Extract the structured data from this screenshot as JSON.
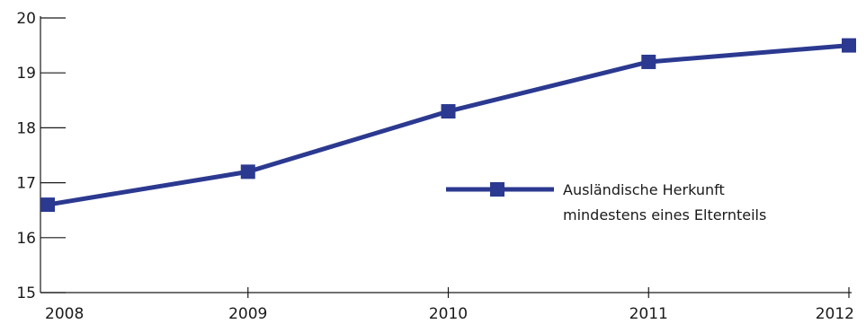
{
  "chart_data": {
    "type": "line",
    "title": "",
    "xlabel": "",
    "ylabel": "",
    "x": [
      "2008",
      "2009",
      "2010",
      "2011",
      "2012"
    ],
    "ylim": [
      15,
      20
    ],
    "yticks": [
      "15",
      "16",
      "17",
      "18",
      "19",
      "20"
    ],
    "grid": false,
    "legend_position": "center-right",
    "series": [
      {
        "name_lines": [
          "Ausländische Herkunft",
          "mindestens eines Elternteils"
        ],
        "values": [
          16.6,
          17.2,
          18.3,
          19.2,
          19.5
        ],
        "color": "#2b3990",
        "marker": "square"
      }
    ]
  }
}
